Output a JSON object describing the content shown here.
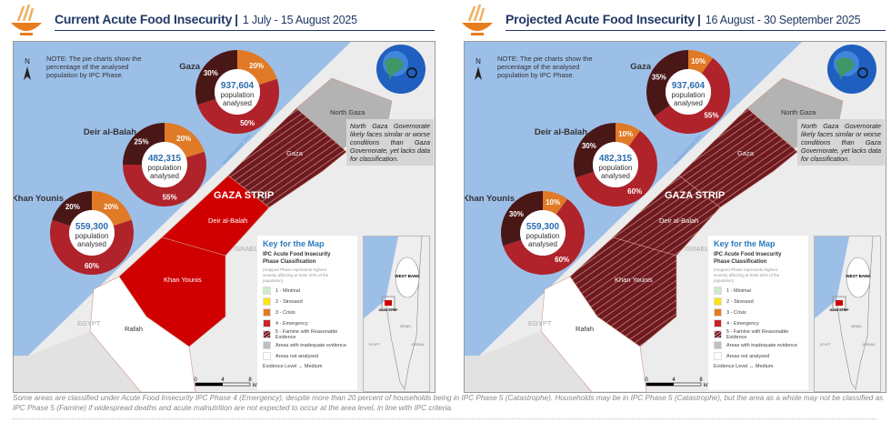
{
  "panels": [
    {
      "title": "Current Acute Food Insecurity",
      "separator": "|",
      "date": "1 July - 15 August 2025",
      "note": "NOTE: The pie charts show the percentage of the analysed population by IPC Phase.",
      "north_label": "N",
      "callout": "North Gaza Governorate likely faces similar or worse conditions than Gaza Governorate, yet lacks data for classification.",
      "area_labels": {
        "north_gaza": "North Gaza",
        "gaza": "Gaza",
        "strip": "GAZA STRIP",
        "deir": "Deir al-Balah",
        "khan": "Khan Younis",
        "rafah": "Rafah",
        "israel": "ISRAEL",
        "egypt": "EGYPT",
        "sea": "Mediterranean Sea"
      },
      "area_phases": {
        "north_gaza": "inadequate",
        "gaza": "5",
        "deir": "4",
        "khan": "4",
        "rafah": "none"
      },
      "pies": [
        {
          "name": "Gaza",
          "population": "937,604",
          "caption1": "population",
          "caption2": "analysed",
          "phase3": 20,
          "phase4": 50,
          "phase5": 30
        },
        {
          "name": "Deir al-Balah",
          "population": "482,315",
          "caption1": "population",
          "caption2": "analysed",
          "phase3": 20,
          "phase4": 55,
          "phase5": 25
        },
        {
          "name": "Khan Younis",
          "population": "559,300",
          "caption1": "population",
          "caption2": "analysed",
          "phase3": 20,
          "phase4": 60,
          "phase5": 20
        }
      ],
      "scale": {
        "ticks": [
          "0",
          "4",
          "8"
        ],
        "unit": "km"
      }
    },
    {
      "title": "Projected Acute Food Insecurity",
      "separator": "|",
      "date": "16 August - 30 September 2025",
      "note": "NOTE: The pie charts show the percentage of the analysed population by IPC Phase.",
      "north_label": "N",
      "callout": "North Gaza Governorate likely faces similar or worse conditions than Gaza Governorate, yet lacks data for classification.",
      "area_labels": {
        "north_gaza": "North Gaza",
        "gaza": "Gaza",
        "strip": "GAZA STRIP",
        "deir": "Deir al-Balah",
        "khan": "Khan Younis",
        "rafah": "Rafah",
        "israel": "ISRAEL",
        "egypt": "EGYPT",
        "sea": "Mediterranean Sea"
      },
      "area_phases": {
        "north_gaza": "inadequate",
        "gaza": "5",
        "deir": "5",
        "khan": "5",
        "rafah": "none"
      },
      "pies": [
        {
          "name": "Gaza",
          "population": "937,604",
          "caption1": "population",
          "caption2": "analysed",
          "phase3": 10,
          "phase4": 55,
          "phase5": 35
        },
        {
          "name": "Deir al-Balah",
          "population": "482,315",
          "caption1": "population",
          "caption2": "analysed",
          "phase3": 10,
          "phase4": 60,
          "phase5": 30
        },
        {
          "name": "Khan Younis",
          "population": "559,300",
          "caption1": "population",
          "caption2": "analysed",
          "phase3": 10,
          "phase4": 60,
          "phase5": 30
        }
      ],
      "scale": {
        "ticks": [
          "0",
          "4",
          "8"
        ],
        "unit": "km"
      }
    }
  ],
  "key": {
    "title": "Key for the Map",
    "subtitle1": "IPC Acute Food Insecurity",
    "subtitle2": "Phase Classification",
    "note": "(mapped Phase represents highest severity affecting at least 20% of the population)",
    "items": [
      {
        "label": "1 - Minimal",
        "color": "#cdeacb"
      },
      {
        "label": "2 - Stressed",
        "color": "#f9e513"
      },
      {
        "label": "3 - Crisis",
        "color": "#e67a1e"
      },
      {
        "label": "4 - Emergency",
        "color": "#c8242a"
      },
      {
        "label": "5 - Famine with Reasonable Evidence",
        "color": "#5a1418",
        "hatched": true
      },
      {
        "label": "Areas with inadequate evidence",
        "color": "#bfbfbf"
      },
      {
        "label": "Areas not analysed",
        "color": "#ffffff"
      }
    ],
    "evidence": "Evidence Level",
    "evidence_value": "Medium",
    "inset_labels": {
      "west_bank": "WEST BANK",
      "strip": "GAZA STRIP",
      "israel": "ISRAEL",
      "egypt": "EGYPT",
      "jordan": "JORDAN"
    }
  },
  "colors": {
    "title": "#1f3864",
    "sea": "#9cbfe8",
    "phase3": "#e07a26",
    "phase4": "#b0232a",
    "phase5": "#4a1717",
    "emergency_map": "#d00000",
    "population": "#2b6cb0"
  },
  "footnote": "Some areas are classified under Acute Food Insecurity IPC Phase 4 (Emergency), despite more than 20 percent of households being in IPC Phase 5 (Catastrophe). Households may be in IPC Phase 5 (Catastrophe), but the area as a whole may not be classified as IPC Phase 5 (Famine) if widespread deaths and acute malnutrition are not expected to occur at the area level, in line with IPC criteria."
}
